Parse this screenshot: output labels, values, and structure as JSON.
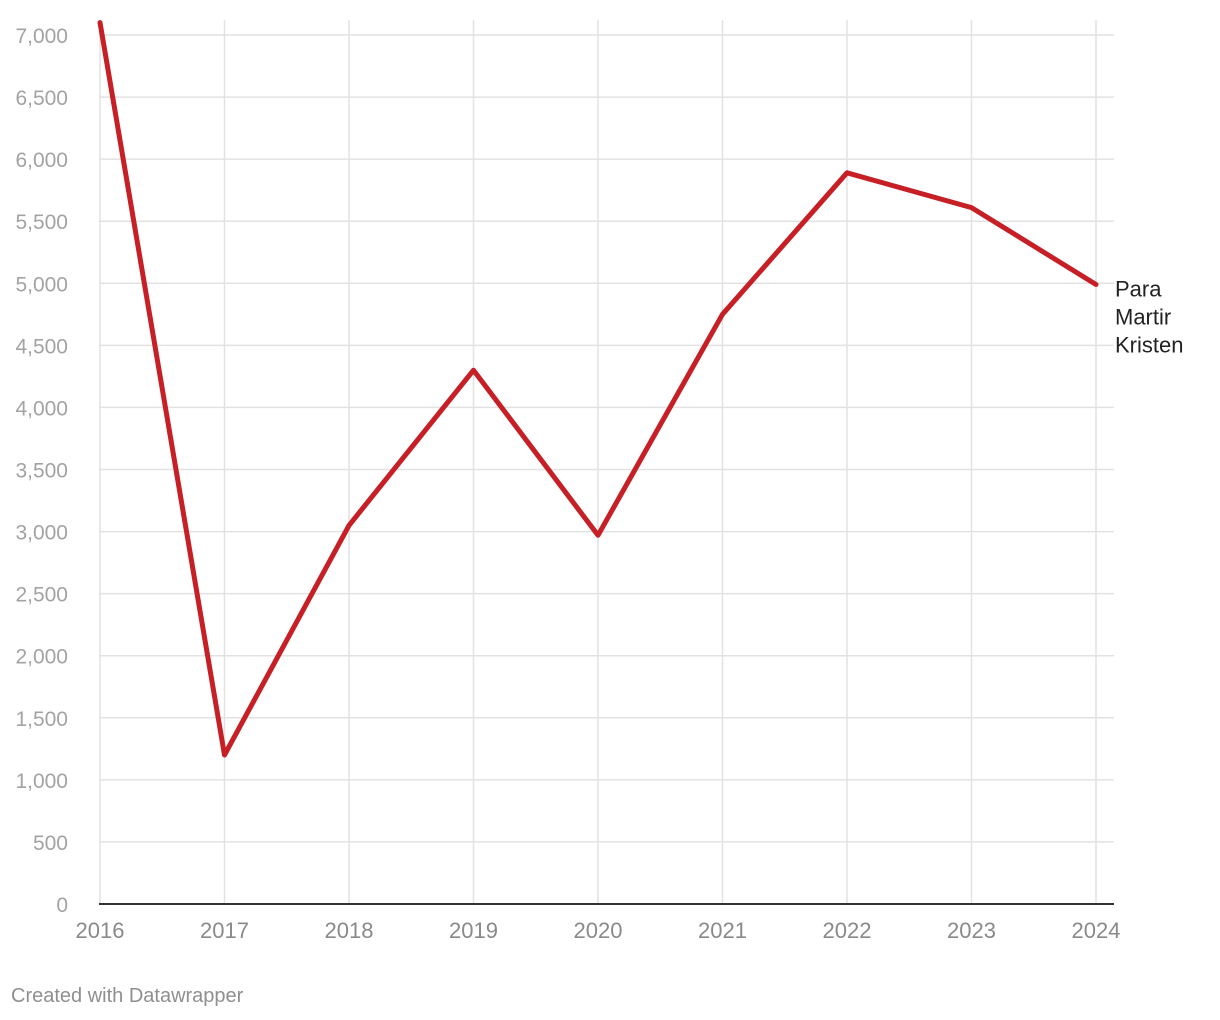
{
  "chart_data": {
    "type": "line",
    "x": [
      "2016",
      "2017",
      "2018",
      "2019",
      "2020",
      "2021",
      "2022",
      "2023",
      "2024"
    ],
    "series": [
      {
        "name": "Para Martir Kristen",
        "label_lines": [
          "Para",
          "Martir",
          "Kristen"
        ],
        "color": "#c62026",
        "values": [
          7100,
          1200,
          3050,
          4300,
          2970,
          4750,
          5890,
          5610,
          4990
        ]
      }
    ],
    "ylim": [
      0,
      7000
    ],
    "yticks": [
      0,
      500,
      1000,
      1500,
      2000,
      2500,
      3000,
      3500,
      4000,
      4500,
      5000,
      5500,
      6000,
      6500,
      7000
    ],
    "ytick_labels": [
      "0",
      "500",
      "1,000",
      "1,500",
      "2,000",
      "2,500",
      "3,000",
      "3,500",
      "4,000",
      "4,500",
      "5,000",
      "5,500",
      "6,000",
      "6,500",
      "7,000"
    ],
    "grid": true
  },
  "footer": {
    "credit": "Created with Datawrapper"
  }
}
